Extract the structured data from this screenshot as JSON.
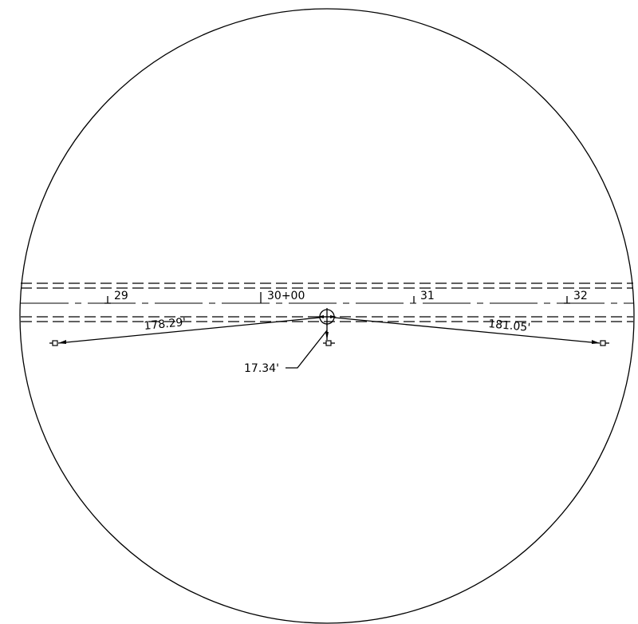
{
  "stations": [
    {
      "label": "29"
    },
    {
      "label": "30+00"
    },
    {
      "label": "31"
    },
    {
      "label": "32"
    }
  ],
  "dimensions": {
    "left_distance": "178.29'",
    "right_distance": "181.05'",
    "offset_distance": "17.34'"
  }
}
